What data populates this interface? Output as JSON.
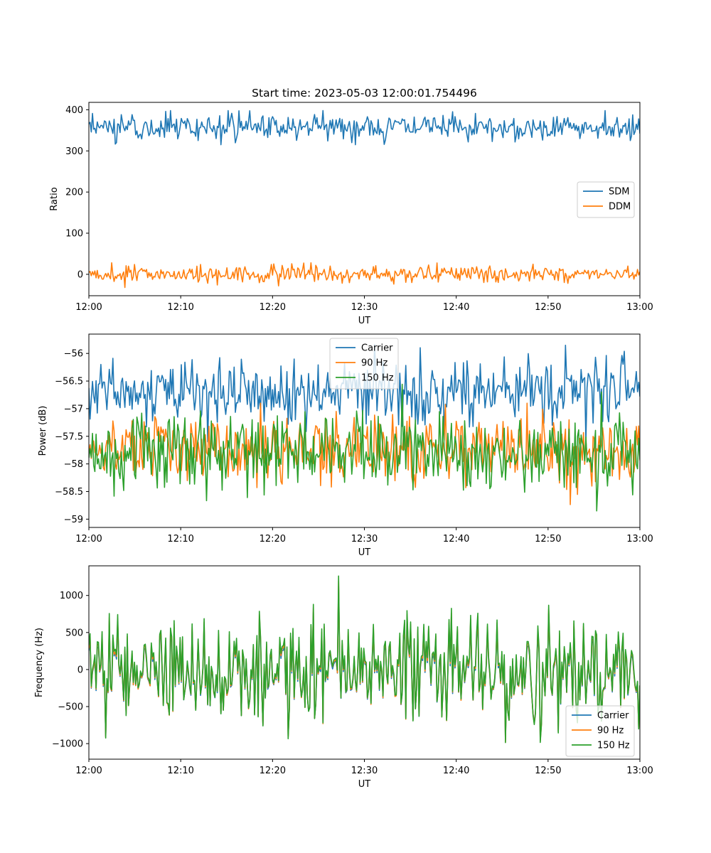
{
  "figure": {
    "title": "Start time: 2023-05-03 12:00:01.754496"
  },
  "chart_data": [
    {
      "type": "line",
      "id": "ratio",
      "xlabel": "UT",
      "ylabel": "Ratio",
      "xlim": [
        "12:00",
        "13:00"
      ],
      "ylim": [
        -52,
        418
      ],
      "xticks": [
        "12:00",
        "12:10",
        "12:20",
        "12:30",
        "12:40",
        "12:50",
        "13:00"
      ],
      "yticks": [
        0,
        100,
        200,
        300,
        400
      ],
      "grid": false,
      "legend_position": "center-right",
      "series": [
        {
          "name": "SDM",
          "color": "#1f77b4",
          "mean": 358,
          "amplitude": 16,
          "min": 315,
          "max": 398
        },
        {
          "name": "DDM",
          "color": "#ff7f0e",
          "mean": 0,
          "amplitude": 10,
          "min": -32,
          "max": 28
        }
      ]
    },
    {
      "type": "line",
      "id": "power",
      "xlabel": "UT",
      "ylabel": "Power (dB)",
      "xlim": [
        "12:00",
        "13:00"
      ],
      "ylim": [
        -59.15,
        -55.65
      ],
      "xticks": [
        "12:00",
        "12:10",
        "12:20",
        "12:30",
        "12:40",
        "12:50",
        "13:00"
      ],
      "yticks": [
        -59.0,
        -58.5,
        -58.0,
        -57.5,
        -57.0,
        -56.5,
        -56.0
      ],
      "grid": false,
      "legend_position": "top-center",
      "series": [
        {
          "name": "Carrier",
          "color": "#1f77b4",
          "mean": -56.7,
          "amplitude": 0.3,
          "min": -57.6,
          "max": -55.7
        },
        {
          "name": "90 Hz",
          "color": "#ff7f0e",
          "mean": -57.75,
          "amplitude": 0.3,
          "min": -58.95,
          "max": -56.9
        },
        {
          "name": "150 Hz",
          "color": "#2ca02c",
          "mean": -57.8,
          "amplitude": 0.35,
          "min": -58.85,
          "max": -56.5
        }
      ]
    },
    {
      "type": "line",
      "id": "frequency",
      "xlabel": "UT",
      "ylabel": "Frequency (Hz)",
      "xlim": [
        "12:00",
        "13:00"
      ],
      "ylim": [
        -1210,
        1400
      ],
      "xticks": [
        "12:00",
        "12:10",
        "12:20",
        "12:30",
        "12:40",
        "12:50",
        "13:00"
      ],
      "yticks": [
        -1000,
        -500,
        0,
        500,
        1000
      ],
      "grid": false,
      "legend_position": "bottom-right",
      "series": [
        {
          "name": "Carrier",
          "color": "#1f77b4",
          "mean": -20,
          "amplitude": 330,
          "min": -1120,
          "max": 1260
        },
        {
          "name": "90 Hz",
          "color": "#ff7f0e",
          "mean": 0,
          "amplitude": 330,
          "min": -1100,
          "max": 1270
        },
        {
          "name": "150 Hz",
          "color": "#2ca02c",
          "mean": 20,
          "amplitude": 330,
          "min": -1080,
          "max": 1280
        }
      ]
    }
  ]
}
